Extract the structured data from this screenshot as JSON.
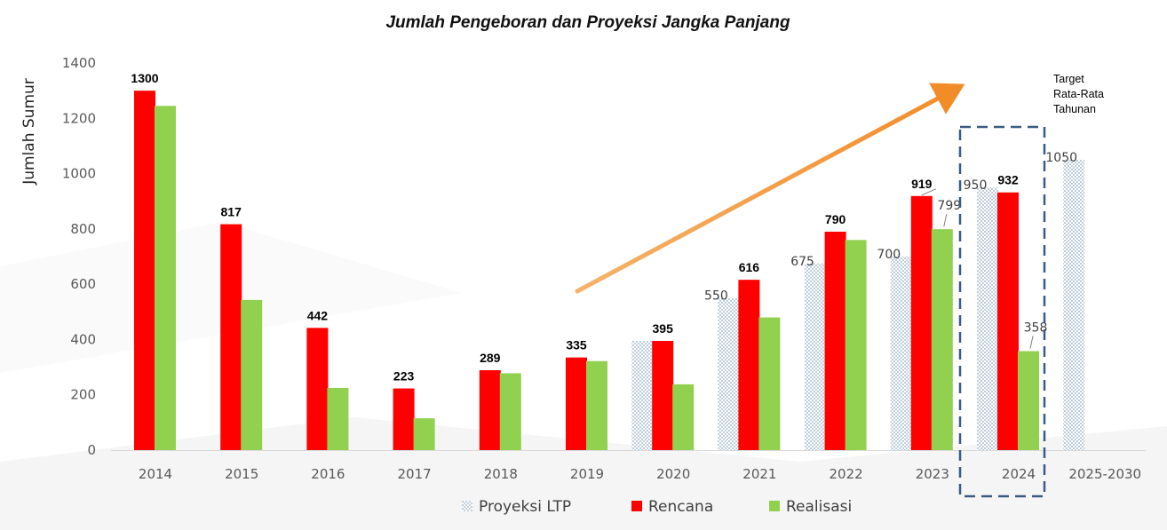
{
  "chart_data": {
    "type": "bar",
    "title": "Jumlah Pengeboran dan Proyeksi Jangka Panjang",
    "ylabel": "Jumlah Sumur",
    "xlabel": "",
    "ylim": [
      0,
      1400
    ],
    "yticks": [
      0,
      200,
      400,
      600,
      800,
      1000,
      1200,
      1400
    ],
    "categories": [
      "2014",
      "2015",
      "2016",
      "2017",
      "2018",
      "2019",
      "2020",
      "2021",
      "2022",
      "2023",
      "2024",
      "2025-2030"
    ],
    "series": [
      {
        "name": "Proyeksi LTP",
        "color": "#8da9c4",
        "style": "dotted",
        "values": [
          null,
          null,
          null,
          null,
          null,
          null,
          395,
          550,
          675,
          700,
          950,
          1050
        ],
        "labels": [
          null,
          null,
          null,
          null,
          null,
          null,
          null,
          "550",
          "675",
          "700",
          "950",
          "1050"
        ]
      },
      {
        "name": "Rencana",
        "color": "#ff0000",
        "style": "solid",
        "values": [
          1300,
          817,
          442,
          223,
          289,
          335,
          395,
          616,
          790,
          919,
          932,
          null
        ],
        "labels": [
          "1300",
          "817",
          "442",
          "223",
          "289",
          "335",
          "395",
          "616",
          "790",
          "919",
          "932",
          null
        ]
      },
      {
        "name": "Realisasi",
        "color": "#92d050",
        "style": "solid",
        "values": [
          1245,
          543,
          225,
          115,
          278,
          322,
          238,
          480,
          760,
          799,
          358,
          null
        ],
        "labels": [
          null,
          null,
          null,
          null,
          null,
          null,
          null,
          null,
          null,
          "799",
          "358",
          null
        ]
      }
    ],
    "legend": [
      "Proyeksi LTP",
      "Rencana",
      "Realisasi"
    ],
    "legend_position": "bottom",
    "annotations": {
      "target_note": [
        "Target",
        "Rata-Rata",
        "Tahunan"
      ],
      "highlight_category": "2024",
      "trend_arrow_color": "#f28c28"
    }
  }
}
